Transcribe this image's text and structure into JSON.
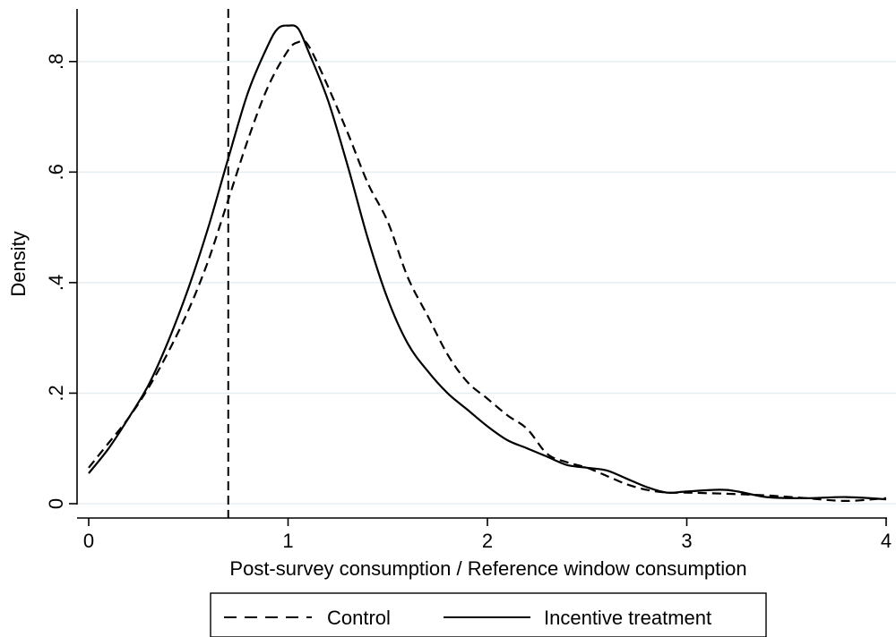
{
  "chart_data": {
    "type": "line",
    "xlabel": "Post-survey consumption / Reference window consumption",
    "ylabel": "Density",
    "xlim": [
      0,
      4
    ],
    "ylim": [
      0,
      0.9
    ],
    "x_ticks": [
      0,
      1,
      2,
      3,
      4
    ],
    "x_tick_labels": [
      "0",
      "1",
      "2",
      "3",
      "4"
    ],
    "y_ticks": [
      0,
      0.2,
      0.4,
      0.6,
      0.8
    ],
    "y_tick_labels": [
      "0",
      ".2",
      ".4",
      ".6",
      ".8"
    ],
    "y_tick_labels_rotated": true,
    "grid": "horizontal",
    "legend_position": "bottom",
    "vline": {
      "x": 0.7,
      "style": "dashed"
    },
    "series": [
      {
        "name": "Control",
        "style": "dashed",
        "color": "#000000",
        "x": [
          0,
          0.1,
          0.2,
          0.3,
          0.4,
          0.5,
          0.6,
          0.7,
          0.8,
          0.9,
          1.0,
          1.05,
          1.1,
          1.2,
          1.3,
          1.4,
          1.5,
          1.6,
          1.7,
          1.8,
          1.9,
          2.0,
          2.1,
          2.2,
          2.3,
          2.4,
          2.5,
          2.6,
          2.7,
          2.8,
          2.9,
          3.0,
          3.2,
          3.4,
          3.6,
          3.8,
          4.0
        ],
        "y": [
          0.065,
          0.11,
          0.155,
          0.21,
          0.275,
          0.35,
          0.44,
          0.55,
          0.66,
          0.755,
          0.82,
          0.835,
          0.83,
          0.755,
          0.67,
          0.58,
          0.51,
          0.41,
          0.34,
          0.27,
          0.22,
          0.19,
          0.16,
          0.135,
          0.09,
          0.075,
          0.065,
          0.05,
          0.035,
          0.025,
          0.02,
          0.02,
          0.018,
          0.015,
          0.01,
          0.005,
          0.01
        ]
      },
      {
        "name": "Incentive treatment",
        "style": "solid",
        "color": "#000000",
        "x": [
          0,
          0.1,
          0.2,
          0.3,
          0.4,
          0.5,
          0.6,
          0.7,
          0.8,
          0.9,
          0.95,
          1.0,
          1.05,
          1.1,
          1.2,
          1.3,
          1.4,
          1.5,
          1.6,
          1.7,
          1.8,
          1.9,
          2.0,
          2.1,
          2.2,
          2.3,
          2.4,
          2.5,
          2.6,
          2.7,
          2.8,
          2.9,
          3.0,
          3.2,
          3.4,
          3.6,
          3.8,
          4.0
        ],
        "y": [
          0.055,
          0.1,
          0.155,
          0.215,
          0.295,
          0.39,
          0.5,
          0.625,
          0.745,
          0.83,
          0.86,
          0.865,
          0.86,
          0.82,
          0.73,
          0.61,
          0.48,
          0.37,
          0.29,
          0.24,
          0.2,
          0.17,
          0.14,
          0.115,
          0.1,
          0.085,
          0.07,
          0.065,
          0.06,
          0.045,
          0.03,
          0.02,
          0.022,
          0.025,
          0.012,
          0.01,
          0.012,
          0.008
        ]
      }
    ]
  }
}
